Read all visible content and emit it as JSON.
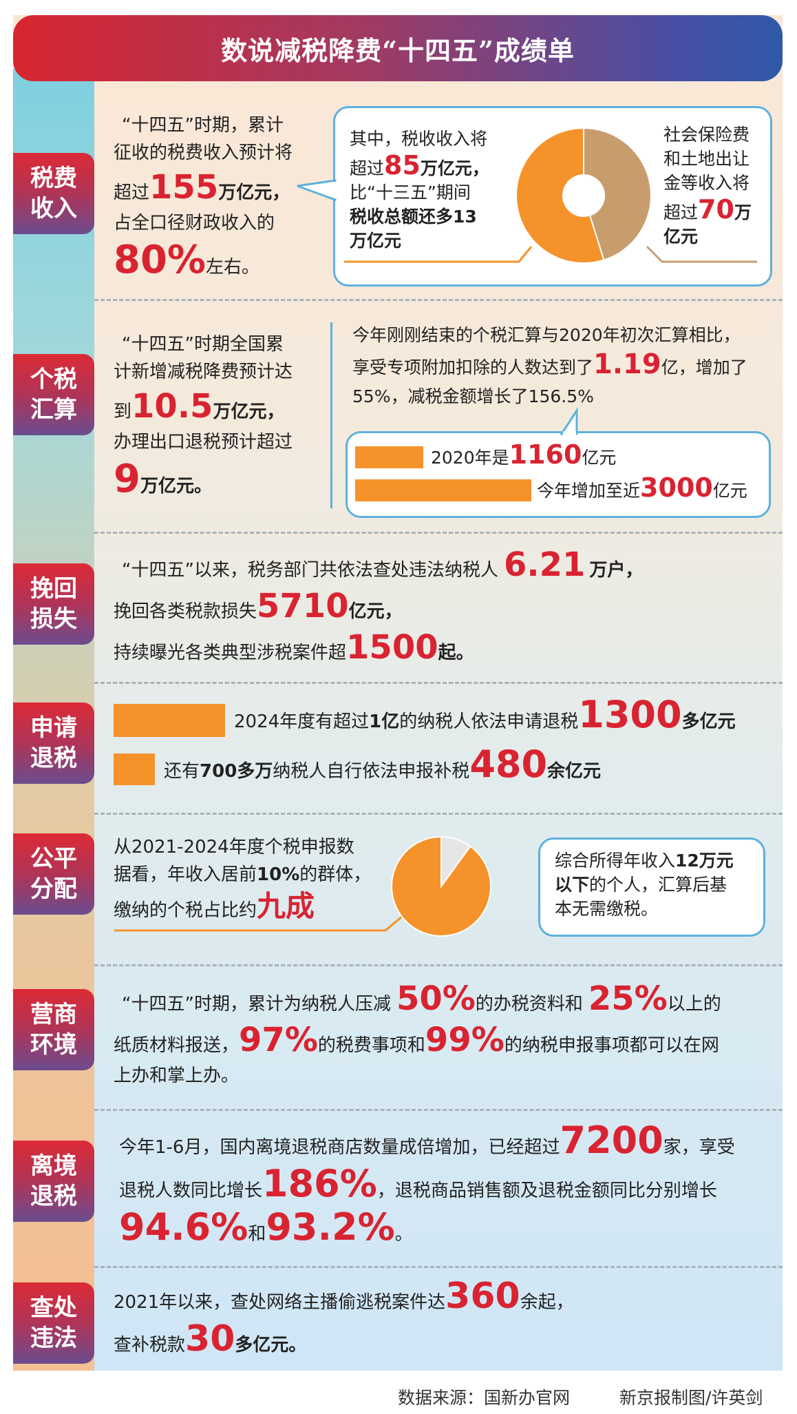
{
  "title": "数说减税降费“十四五”成绩单",
  "sections": [
    {
      "tag": "税费收入",
      "left": {
        "l1": "“十四五”时期，累计",
        "l2": "征收的税费收入预计将",
        "l3a": "超过",
        "l3n": "155",
        "l3u": "万亿元，",
        "l4": "占全口径财政收入的",
        "l5n": "80%",
        "l5u": "左右。"
      },
      "box": {
        "l1": "其中，税收收入将",
        "l2a": "超过",
        "l2n": "85",
        "l2u": "万亿元，",
        "l3": "比“十三五”期间",
        "l4": "税收总额还多13",
        "l5": "万亿元"
      },
      "right": {
        "l1": "社会保险费",
        "l2": "和土地出让",
        "l3": "金等收入将",
        "l4a": "超过",
        "l4n": "70",
        "l4u": "万",
        "l5": "亿元"
      },
      "donut": {
        "tax_trillion": 85,
        "social_land_trillion": 70,
        "colors": [
          "#f5922a",
          "#c89d6e"
        ]
      }
    },
    {
      "tag": "个税汇算",
      "left": {
        "l1": "“十四五”时期全国累",
        "l2": "计新增减税降费预计达",
        "l3a": "到",
        "l3n": "10.5",
        "l3u": "万亿元，",
        "l4": "办理出口退税预计超过",
        "l5n": "9",
        "l5u": "万亿元。"
      },
      "right": {
        "l1": "今年刚刚结束的个税汇算与2020年初次汇算相比，",
        "l2a": "享受专项附加扣除的人数达到了",
        "l2n": "1.19",
        "l2u": "亿，增加了",
        "l3": "55%，减税金额增长了156.5%"
      },
      "bars": [
        {
          "a": "2020年是",
          "n": "1160",
          "u": "亿元",
          "value": 1160
        },
        {
          "a": "今年增加至近",
          "n": "3000",
          "u": "亿元",
          "value": 3000
        }
      ]
    },
    {
      "tag": "挽回损失",
      "l1a": "“十四五”以来，税务部门共依法查处违法纳税人",
      "l1n": "6.21",
      "l1u": "万户，",
      "l2a": "挽回各类税款损失",
      "l2n": "5710",
      "l2u": "亿元，",
      "l3a": "持续曝光各类典型涉税案件超",
      "l3n": "1500",
      "l3u": "起。"
    },
    {
      "tag": "申请退税",
      "rows": [
        {
          "a": "2024年度有超过",
          "ab": "1亿",
          "a2": "的纳税人依法申请退税",
          "n": "1300",
          "u": "多亿元",
          "value": 1300
        },
        {
          "a": "还有",
          "ab": "700多万",
          "a2": "纳税人自行依法申报补税",
          "n": "480",
          "u": "余亿元",
          "value": 480
        }
      ]
    },
    {
      "tag": "公平分配",
      "l1": "从2021-2024年度个税申报数",
      "l2a": "据看，年收入居前",
      "l2b": "10%",
      "l2c": "的群体，",
      "l3a": "缴纳的个税占比约",
      "l3n": "九成",
      "pie": {
        "top10_share": 0.9,
        "colors": [
          "#f5922a",
          "#e6e6e6"
        ]
      },
      "box": {
        "l1a": "综合所得年收入",
        "l1b": "12万元",
        "l2b": "以下",
        "l2a": "的个人，汇算后基",
        "l3": "本无需缴税。"
      }
    },
    {
      "tag": "营商环境",
      "l1a": "“十四五”时期，累计为纳税人压减",
      "l1n": "50%",
      "l1b": "的办税资料和",
      "l1n2": "25%",
      "l1c": "以上的",
      "l2a": "纸质材料报送，",
      "l2n": "97%",
      "l2b": "的税费事项和",
      "l2n2": "99%",
      "l2c": "的纳税申报事项都可以在网",
      "l3": "上办和掌上办。"
    },
    {
      "tag": "离境退税",
      "l1a": "今年1-6月，国内离境退税商店数量成倍增加，已经超过",
      "l1n": "7200",
      "l1b": "家，享受",
      "l2a": "退税人数同比增长",
      "l2n": "186%",
      "l2b": "，退税商品销售额及退税金额同比分别增长",
      "l3n": "94.6%",
      "l3a": "和",
      "l3n2": "93.2%",
      "l3b": "。"
    },
    {
      "tag": "查处违法",
      "l1a": "2021年以来，查处网络主播偷逃税案件达",
      "l1n": "360",
      "l1u": "余起，",
      "l2a": "查补税款",
      "l2n": "30",
      "l2u": "多亿元。"
    }
  ],
  "footer": {
    "source": "数据来源：国新办官网",
    "credit": "新京报制图/许英剑"
  }
}
